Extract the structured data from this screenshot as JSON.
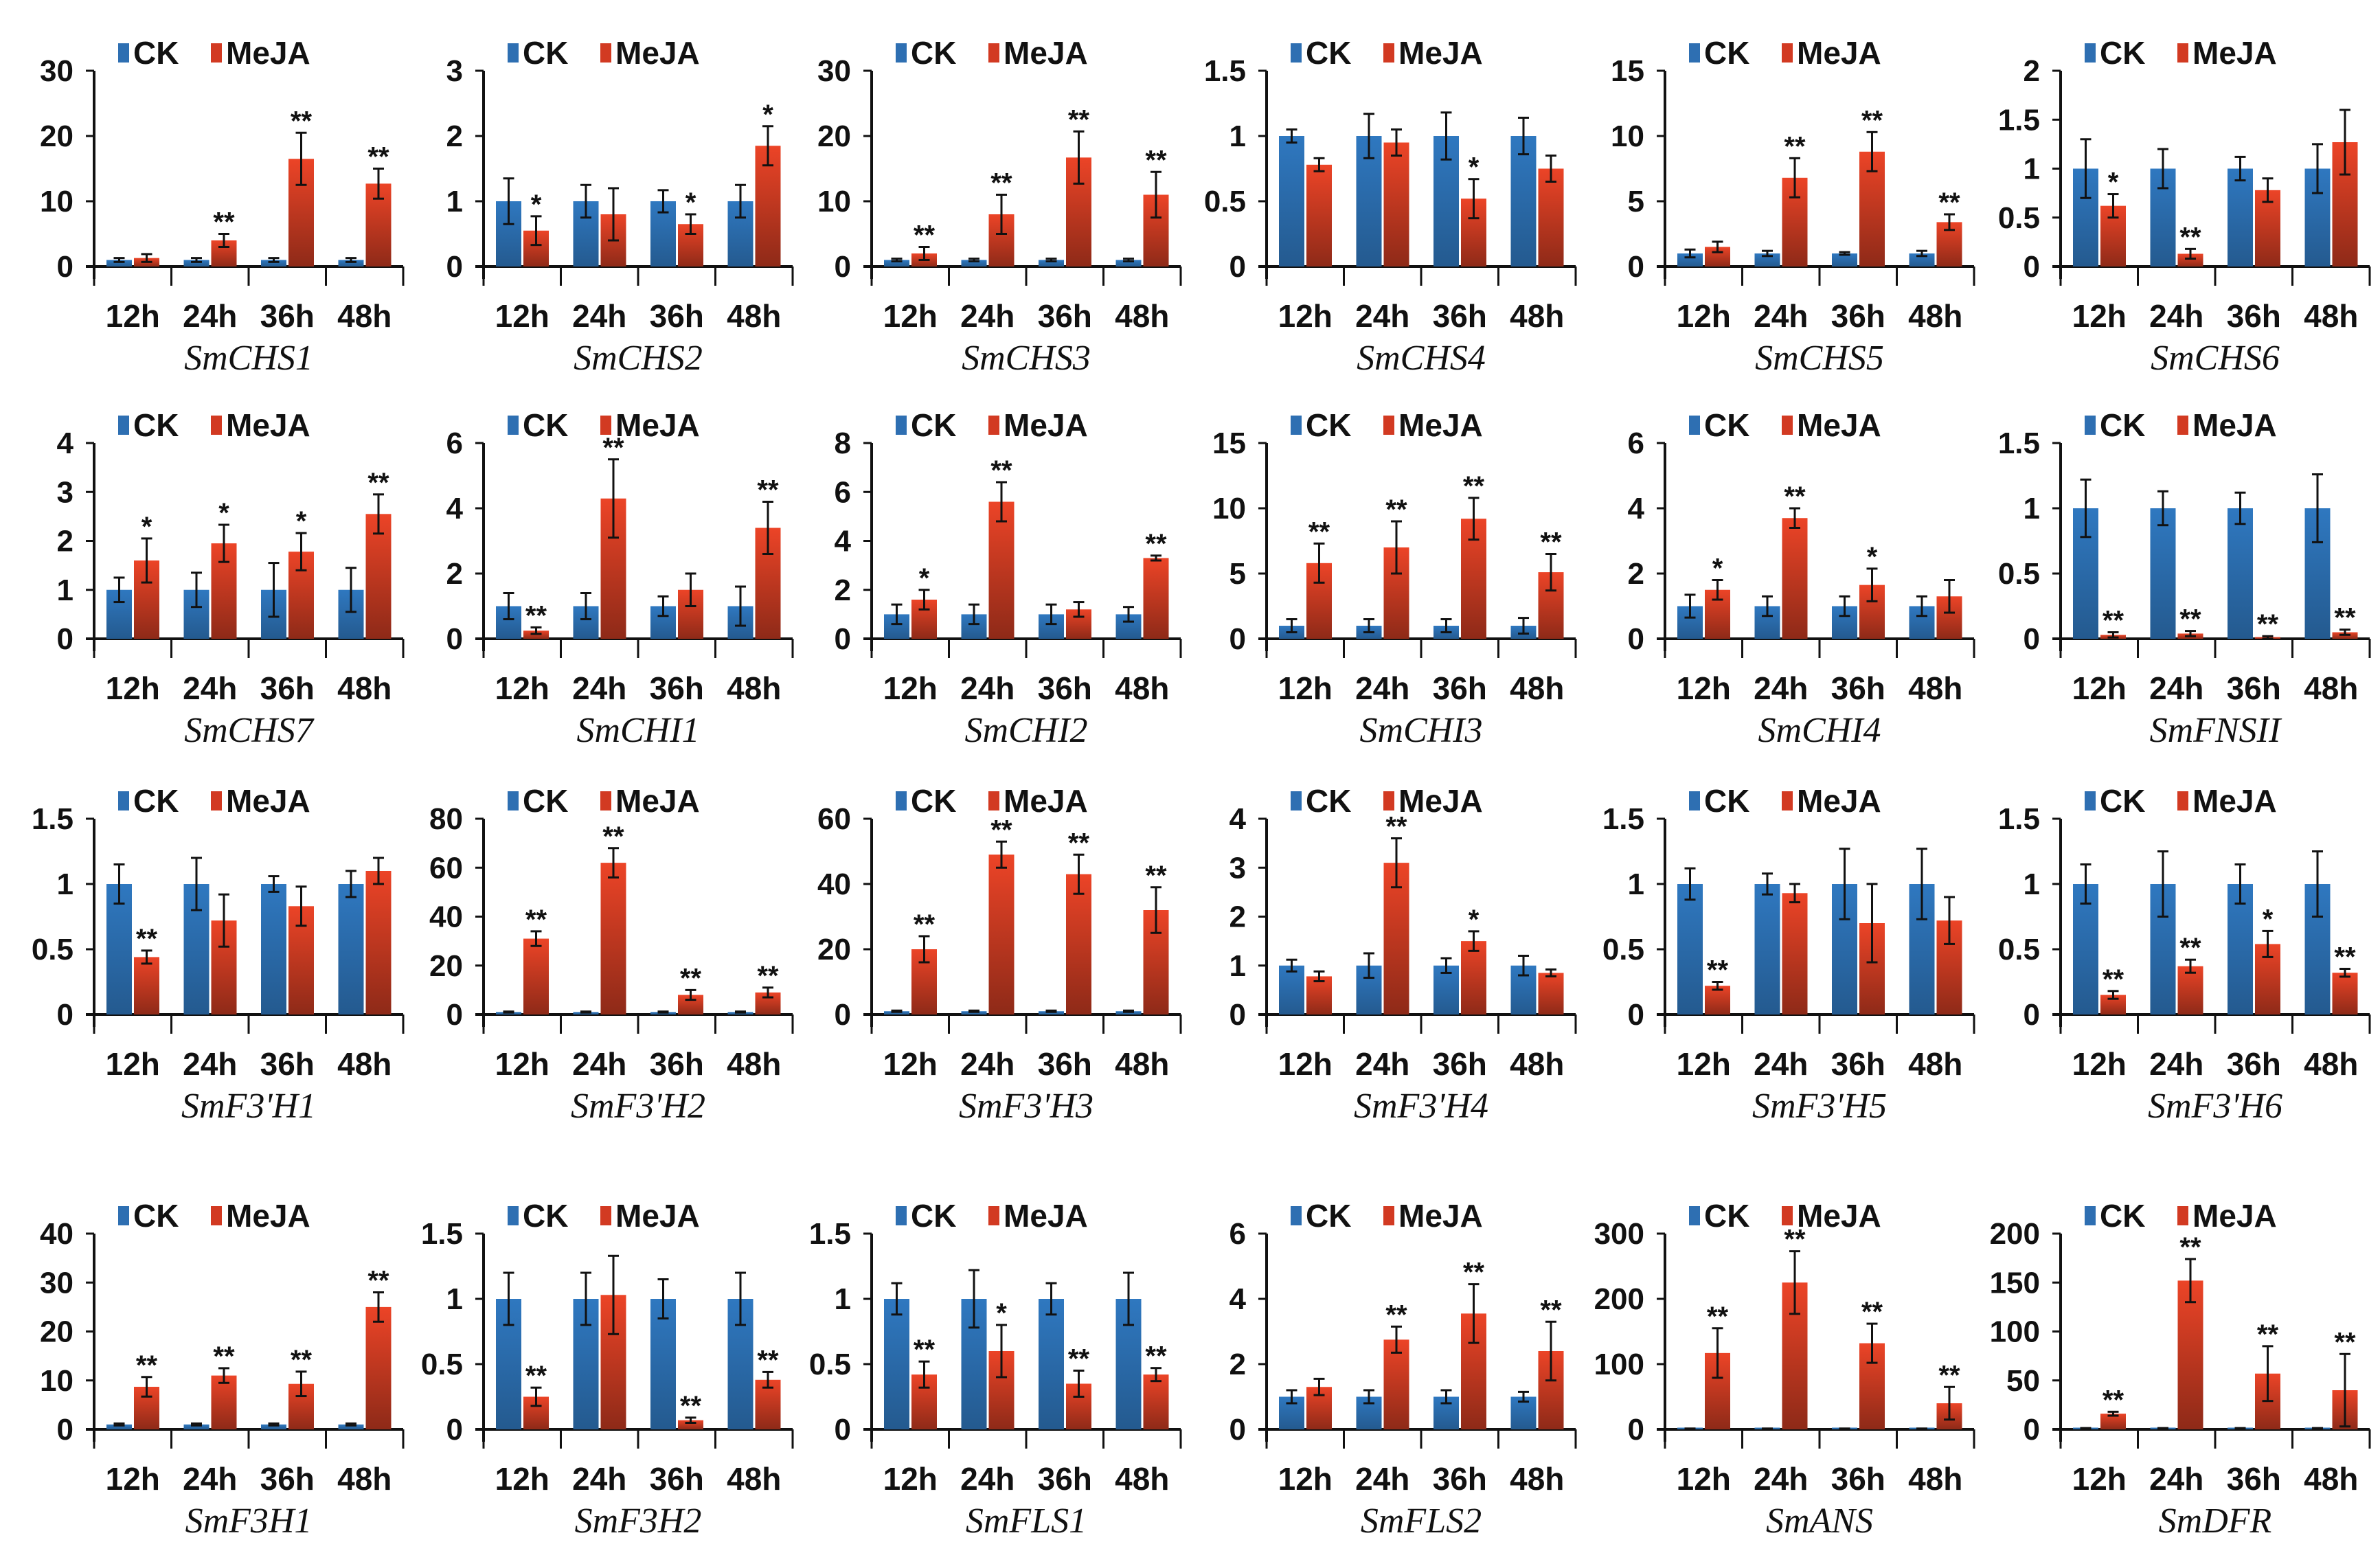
{
  "colors": {
    "ck": "#2e6fb2",
    "meja": "#d23a22"
  },
  "chart_data": {
    "type": "bar",
    "categories": [
      "12h",
      "24h",
      "36h",
      "48h"
    ],
    "legend": [
      "CK",
      "MeJA"
    ],
    "legend_placement": "top",
    "panels": [
      {
        "title": "SmCHS1",
        "ylim": [
          0,
          30
        ],
        "ticks": [
          "0",
          "10",
          "20",
          "30"
        ],
        "ck": [
          1,
          1,
          1,
          1
        ],
        "ck_err": [
          0.3,
          0.3,
          0.3,
          0.3
        ],
        "meja": [
          1.3,
          4,
          16.5,
          12.7
        ],
        "meja_err": [
          0.6,
          1,
          4,
          2.3
        ],
        "sig": [
          "",
          "**",
          "**",
          "**"
        ]
      },
      {
        "title": "SmCHS2",
        "ylim": [
          0,
          3
        ],
        "ticks": [
          "0",
          "1",
          "2",
          "3"
        ],
        "ck": [
          1,
          1,
          1,
          1
        ],
        "ck_err": [
          0.35,
          0.25,
          0.17,
          0.25
        ],
        "meja": [
          0.55,
          0.8,
          0.65,
          1.85
        ],
        "meja_err": [
          0.22,
          0.4,
          0.15,
          0.3
        ],
        "sig": [
          "*",
          "",
          "*",
          "*"
        ]
      },
      {
        "title": "SmCHS3",
        "ylim": [
          0,
          30
        ],
        "ticks": [
          "0",
          "10",
          "20",
          "30"
        ],
        "ck": [
          1,
          1,
          1,
          1
        ],
        "ck_err": [
          0.2,
          0.2,
          0.2,
          0.2
        ],
        "meja": [
          2,
          8,
          16.7,
          11
        ],
        "meja_err": [
          1,
          3,
          4,
          3.5
        ],
        "sig": [
          "**",
          "**",
          "**",
          "**"
        ]
      },
      {
        "title": "SmCHS4",
        "ylim": [
          0,
          1.5
        ],
        "ticks": [
          "0",
          "0.5",
          "1",
          "1.5"
        ],
        "ck": [
          1,
          1,
          1,
          1
        ],
        "ck_err": [
          0.05,
          0.17,
          0.18,
          0.14
        ],
        "meja": [
          0.78,
          0.95,
          0.52,
          0.75
        ],
        "meja_err": [
          0.05,
          0.1,
          0.15,
          0.1
        ],
        "sig": [
          "",
          "",
          "*",
          ""
        ]
      },
      {
        "title": "SmCHS5",
        "ylim": [
          0,
          15
        ],
        "ticks": [
          "0",
          "5",
          "10",
          "15"
        ],
        "ck": [
          1,
          1,
          1,
          1
        ],
        "ck_err": [
          0.3,
          0.2,
          0.1,
          0.2
        ],
        "meja": [
          1.5,
          6.8,
          8.8,
          3.4
        ],
        "meja_err": [
          0.4,
          1.5,
          1.5,
          0.6
        ],
        "sig": [
          "",
          "**",
          "**",
          "**"
        ]
      },
      {
        "title": "SmCHS6",
        "ylim": [
          0,
          2
        ],
        "ticks": [
          "0",
          "0.5",
          "1",
          "1.5",
          "2"
        ],
        "ck": [
          1,
          1,
          1,
          1
        ],
        "ck_err": [
          0.3,
          0.2,
          0.12,
          0.25
        ],
        "meja": [
          0.62,
          0.13,
          0.78,
          1.27
        ],
        "meja_err": [
          0.12,
          0.05,
          0.12,
          0.33
        ],
        "sig": [
          "*",
          "**",
          "",
          ""
        ]
      },
      {
        "title": "SmCHS7",
        "ylim": [
          0,
          4
        ],
        "ticks": [
          "0",
          "1",
          "2",
          "3",
          "4"
        ],
        "ck": [
          1,
          1,
          1,
          1
        ],
        "ck_err": [
          0.25,
          0.35,
          0.55,
          0.45
        ],
        "meja": [
          1.6,
          1.95,
          1.78,
          2.55
        ],
        "meja_err": [
          0.45,
          0.38,
          0.38,
          0.4
        ],
        "sig": [
          "*",
          "*",
          "*",
          "**"
        ]
      },
      {
        "title": "SmCHI1",
        "ylim": [
          0,
          6
        ],
        "ticks": [
          "0",
          "2",
          "4",
          "6"
        ],
        "ck": [
          1,
          1,
          1,
          1
        ],
        "ck_err": [
          0.4,
          0.4,
          0.3,
          0.6
        ],
        "meja": [
          0.25,
          4.3,
          1.5,
          3.4
        ],
        "meja_err": [
          0.1,
          1.2,
          0.5,
          0.8
        ],
        "sig": [
          "**",
          "**",
          "",
          "**"
        ]
      },
      {
        "title": "SmCHI2",
        "ylim": [
          0,
          8
        ],
        "ticks": [
          "0",
          "2",
          "4",
          "6",
          "8"
        ],
        "ck": [
          1,
          1,
          1,
          1
        ],
        "ck_err": [
          0.4,
          0.4,
          0.4,
          0.3
        ],
        "meja": [
          1.6,
          5.6,
          1.2,
          3.3
        ],
        "meja_err": [
          0.4,
          0.8,
          0.3,
          0.1
        ],
        "sig": [
          "*",
          "**",
          "",
          "**"
        ]
      },
      {
        "title": "SmCHI3",
        "ylim": [
          0,
          15
        ],
        "ticks": [
          "0",
          "5",
          "10",
          "15"
        ],
        "ck": [
          1,
          1,
          1,
          1
        ],
        "ck_err": [
          0.5,
          0.5,
          0.5,
          0.6
        ],
        "meja": [
          5.8,
          7,
          9.2,
          5.1
        ],
        "meja_err": [
          1.5,
          2,
          1.6,
          1.4
        ],
        "sig": [
          "**",
          "**",
          "**",
          "**"
        ]
      },
      {
        "title": "SmCHI4",
        "ylim": [
          0,
          6
        ],
        "ticks": [
          "0",
          "2",
          "4",
          "6"
        ],
        "ck": [
          1,
          1,
          1,
          1
        ],
        "ck_err": [
          0.35,
          0.3,
          0.3,
          0.3
        ],
        "meja": [
          1.5,
          3.7,
          1.65,
          1.3
        ],
        "meja_err": [
          0.3,
          0.3,
          0.5,
          0.5
        ],
        "sig": [
          "*",
          "**",
          "*",
          ""
        ]
      },
      {
        "title": "SmFNSII",
        "ylim": [
          0,
          1.5
        ],
        "ticks": [
          "0",
          "0.5",
          "1",
          "1.5"
        ],
        "ck": [
          1,
          1,
          1,
          1
        ],
        "ck_err": [
          0.22,
          0.13,
          0.12,
          0.26
        ],
        "meja": [
          0.03,
          0.04,
          0.01,
          0.05
        ],
        "meja_err": [
          0.02,
          0.02,
          0.01,
          0.02
        ],
        "sig": [
          "**",
          "**",
          "**",
          "**"
        ]
      },
      {
        "title": "SmF3'H1",
        "ylim": [
          0,
          1.5
        ],
        "ticks": [
          "0",
          "0.5",
          "1",
          "1.5"
        ],
        "ck": [
          1,
          1,
          1,
          1
        ],
        "ck_err": [
          0.15,
          0.2,
          0.06,
          0.1
        ],
        "meja": [
          0.44,
          0.72,
          0.83,
          1.1
        ],
        "meja_err": [
          0.05,
          0.2,
          0.15,
          0.1
        ],
        "sig": [
          "**",
          "",
          "",
          ""
        ]
      },
      {
        "title": "SmF3'H2",
        "ylim": [
          0,
          80
        ],
        "ticks": [
          "0",
          "20",
          "40",
          "60",
          "80"
        ],
        "ck": [
          1,
          1,
          1,
          1
        ],
        "ck_err": [
          0.2,
          0.2,
          0.2,
          0.2
        ],
        "meja": [
          31,
          62,
          8,
          9
        ],
        "meja_err": [
          3,
          6,
          2,
          2
        ],
        "sig": [
          "**",
          "**",
          "**",
          "**"
        ]
      },
      {
        "title": "SmF3'H3",
        "ylim": [
          0,
          60
        ],
        "ticks": [
          "0",
          "20",
          "40",
          "60"
        ],
        "ck": [
          1,
          1,
          1,
          1
        ],
        "ck_err": [
          0.2,
          0.2,
          0.2,
          0.2
        ],
        "meja": [
          20,
          49,
          43,
          32
        ],
        "meja_err": [
          4,
          4,
          6,
          7
        ],
        "sig": [
          "**",
          "**",
          "**",
          "**"
        ]
      },
      {
        "title": "SmF3'H4",
        "ylim": [
          0,
          4
        ],
        "ticks": [
          "0",
          "1",
          "2",
          "3",
          "4"
        ],
        "ck": [
          1,
          1,
          1,
          1
        ],
        "ck_err": [
          0.12,
          0.25,
          0.15,
          0.2
        ],
        "meja": [
          0.78,
          3.1,
          1.5,
          0.85
        ],
        "meja_err": [
          0.1,
          0.5,
          0.2,
          0.07
        ],
        "sig": [
          "",
          "**",
          "*",
          ""
        ]
      },
      {
        "title": "SmF3'H5",
        "ylim": [
          0,
          1.5
        ],
        "ticks": [
          "0",
          "0.5",
          "1",
          "1.5"
        ],
        "ck": [
          1,
          1,
          1,
          1
        ],
        "ck_err": [
          0.12,
          0.08,
          0.27,
          0.27
        ],
        "meja": [
          0.22,
          0.93,
          0.7,
          0.72
        ],
        "meja_err": [
          0.03,
          0.07,
          0.3,
          0.18
        ],
        "sig": [
          "**",
          "",
          "",
          ""
        ]
      },
      {
        "title": "SmF3'H6",
        "ylim": [
          0,
          1.5
        ],
        "ticks": [
          "0",
          "0.5",
          "1",
          "1.5"
        ],
        "ck": [
          1,
          1,
          1,
          1
        ],
        "ck_err": [
          0.15,
          0.25,
          0.15,
          0.25
        ],
        "meja": [
          0.15,
          0.37,
          0.54,
          0.32
        ],
        "meja_err": [
          0.03,
          0.05,
          0.1,
          0.03
        ],
        "sig": [
          "**",
          "**",
          "*",
          "**"
        ]
      },
      {
        "title": "SmF3H1",
        "ylim": [
          0,
          40
        ],
        "ticks": [
          "0",
          "10",
          "20",
          "30",
          "40"
        ],
        "ck": [
          1,
          1,
          1,
          1
        ],
        "ck_err": [
          0.2,
          0.2,
          0.2,
          0.2
        ],
        "meja": [
          8.7,
          11,
          9.3,
          25
        ],
        "meja_err": [
          2,
          1.5,
          2.5,
          3
        ],
        "sig": [
          "**",
          "**",
          "**",
          "**"
        ]
      },
      {
        "title": "SmF3H2",
        "ylim": [
          0,
          1.5
        ],
        "ticks": [
          "0",
          "0.5",
          "1",
          "1.5"
        ],
        "ck": [
          1,
          1,
          1,
          1
        ],
        "ck_err": [
          0.2,
          0.2,
          0.15,
          0.2
        ],
        "meja": [
          0.25,
          1.03,
          0.07,
          0.38
        ],
        "meja_err": [
          0.07,
          0.3,
          0.02,
          0.06
        ],
        "sig": [
          "**",
          "",
          "**",
          "**"
        ]
      },
      {
        "title": "SmFLS1",
        "ylim": [
          0,
          1.5
        ],
        "ticks": [
          "0",
          "0.5",
          "1",
          "1.5"
        ],
        "ck": [
          1,
          1,
          1,
          1
        ],
        "ck_err": [
          0.12,
          0.22,
          0.12,
          0.2
        ],
        "meja": [
          0.42,
          0.6,
          0.35,
          0.42
        ],
        "meja_err": [
          0.1,
          0.2,
          0.1,
          0.05
        ],
        "sig": [
          "**",
          "*",
          "**",
          "**"
        ]
      },
      {
        "title": "SmFLS2",
        "ylim": [
          0,
          6
        ],
        "ticks": [
          "0",
          "2",
          "4",
          "6"
        ],
        "ck": [
          1,
          1,
          1,
          1
        ],
        "ck_err": [
          0.2,
          0.2,
          0.2,
          0.15
        ],
        "meja": [
          1.3,
          2.75,
          3.55,
          2.4
        ],
        "meja_err": [
          0.25,
          0.4,
          0.9,
          0.9
        ],
        "sig": [
          "",
          "**",
          "**",
          "**"
        ]
      },
      {
        "title": "SmANS",
        "ylim": [
          0,
          300
        ],
        "ticks": [
          "0",
          "100",
          "200",
          "300"
        ],
        "ck": [
          1,
          1,
          1,
          1
        ],
        "ck_err": [
          0.3,
          0.3,
          0.3,
          0.3
        ],
        "meja": [
          117,
          225,
          132,
          40
        ],
        "meja_err": [
          38,
          48,
          30,
          25
        ],
        "sig": [
          "**",
          "**",
          "**",
          "**"
        ]
      },
      {
        "title": "SmDFR",
        "ylim": [
          0,
          200
        ],
        "ticks": [
          "0",
          "50",
          "100",
          "150",
          "200"
        ],
        "ck": [
          1,
          1,
          1,
          1
        ],
        "ck_err": [
          0.3,
          0.3,
          0.3,
          0.3
        ],
        "meja": [
          16,
          152,
          57,
          40
        ],
        "meja_err": [
          2,
          22,
          28,
          37
        ],
        "sig": [
          "**",
          "**",
          "**",
          "**"
        ]
      }
    ]
  }
}
